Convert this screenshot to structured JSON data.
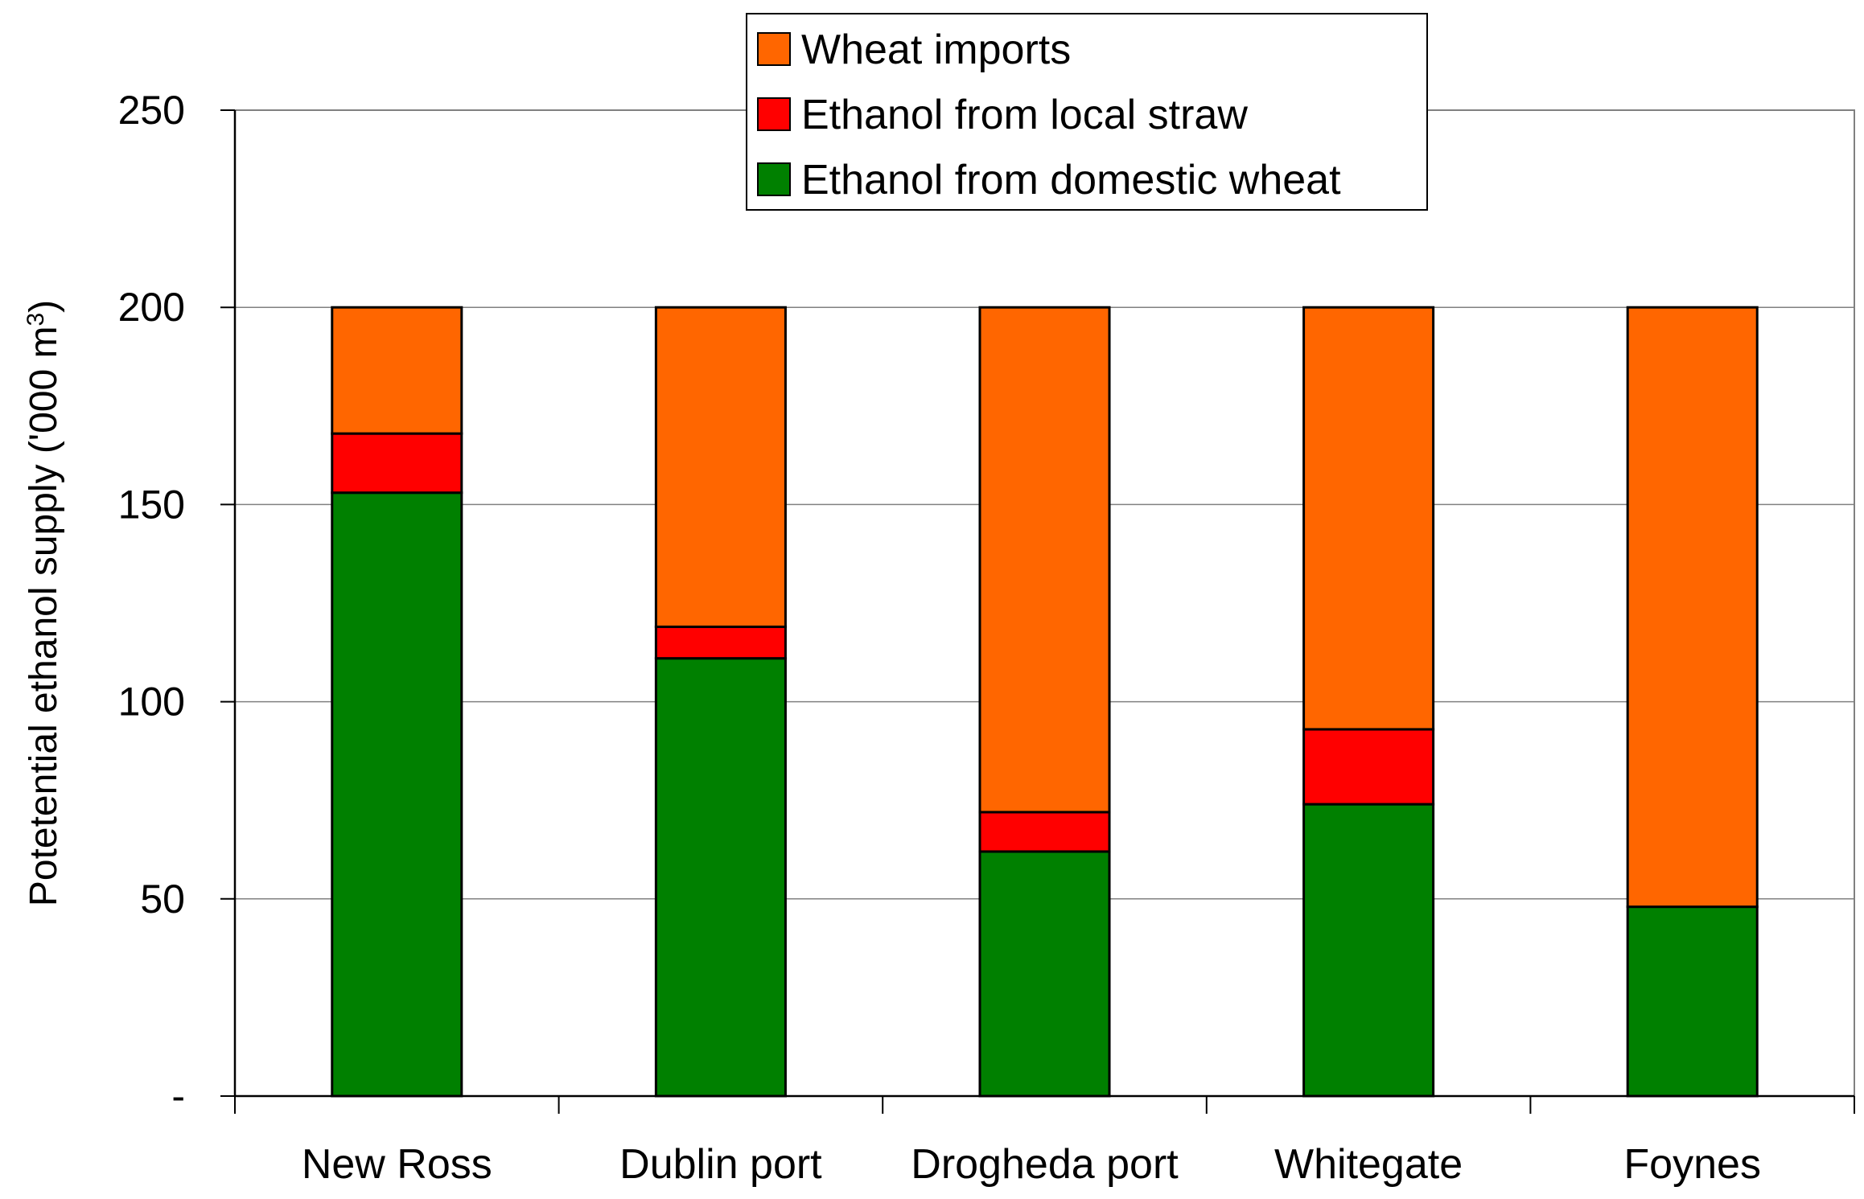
{
  "chart_data": {
    "type": "bar",
    "stacked": true,
    "title": "",
    "xlabel": "",
    "ylabel": "Potetential ethanol supply ('000 m",
    "ylabel_superscript": "3",
    "ylabel_suffix": ")",
    "categories": [
      "New Ross",
      "Dublin port",
      "Drogheda port",
      "Whitegate",
      "Foynes"
    ],
    "series": [
      {
        "name": "Ethanol from domestic wheat",
        "color": "#008000",
        "values": [
          153,
          111,
          62,
          74,
          48
        ]
      },
      {
        "name": "Ethanol from local straw",
        "color": "#ff0000",
        "values": [
          15,
          8,
          10,
          19,
          0
        ]
      },
      {
        "name": "Wheat imports",
        "color": "#ff6600",
        "values": [
          32,
          81,
          128,
          107,
          152
        ]
      }
    ],
    "ylim": [
      0,
      250
    ],
    "yticks": [
      {
        "value": 0,
        "label": "-"
      },
      {
        "value": 50,
        "label": "50"
      },
      {
        "value": 100,
        "label": "100"
      },
      {
        "value": 150,
        "label": "150"
      },
      {
        "value": 200,
        "label": "200"
      },
      {
        "value": 250,
        "label": "250"
      }
    ],
    "grid": true,
    "legend_position": "top-center",
    "legend_order": [
      "Wheat imports",
      "Ethanol from local straw",
      "Ethanol from domestic wheat"
    ]
  }
}
